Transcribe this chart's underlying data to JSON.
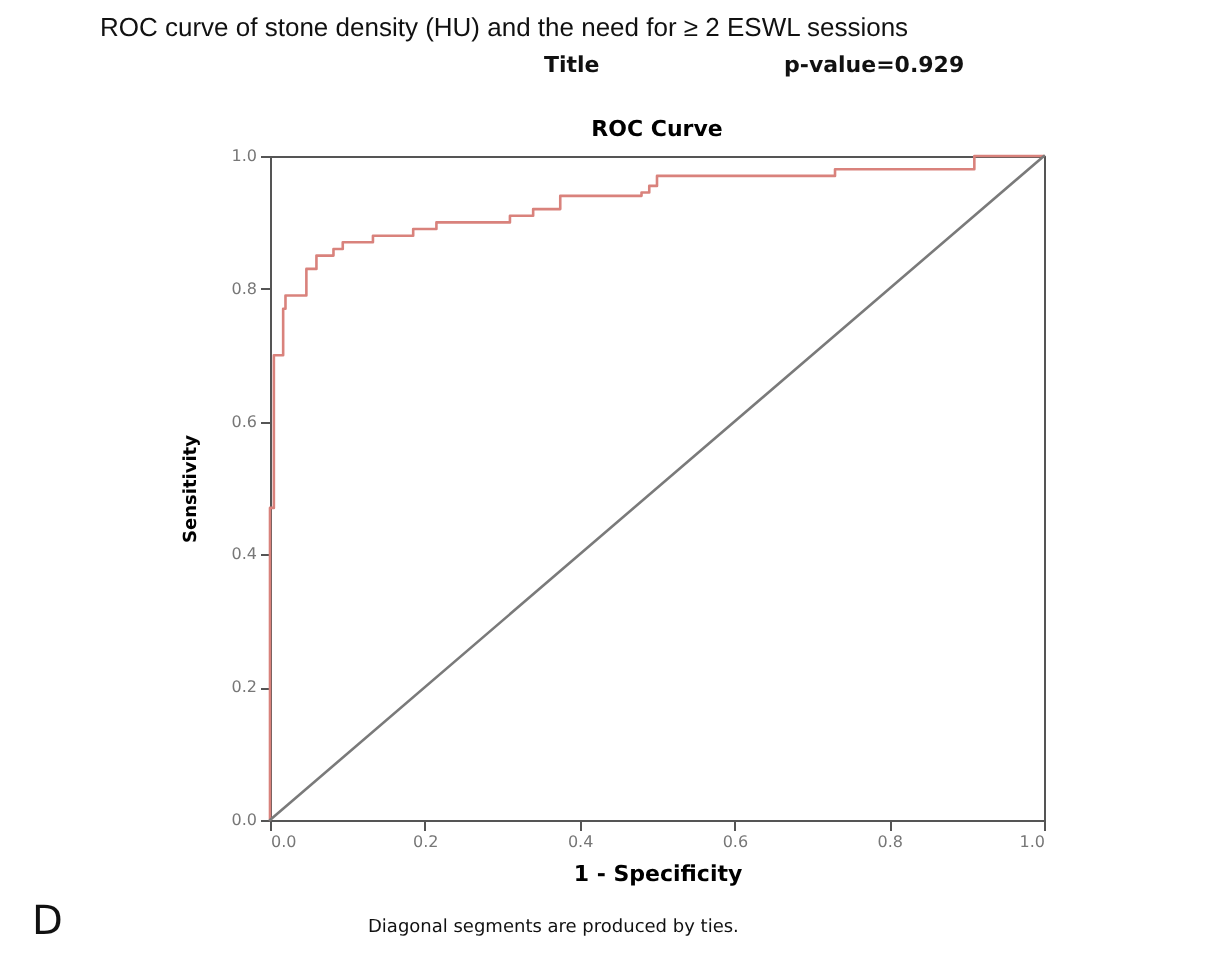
{
  "chart_data": {
    "type": "step",
    "title": "ROC curve of stone density (HU) and the need for ≥ 2 ESWL sessions",
    "subtitle": "ROC Curve",
    "xlabel": "1 - Specificity",
    "ylabel": "Sensitivity",
    "annotations": [
      "Title",
      "p-value=0.929",
      "Diagonal segments are produced by ties.",
      "D"
    ],
    "series": [
      {
        "color": "#d9827c",
        "x": [
          0,
          0,
          0.005,
          0.017,
          0.02,
          0.047,
          0.06,
          0.082,
          0.094,
          0.133,
          0.185,
          0.215,
          0.31,
          0.34,
          0.375,
          0.48,
          0.49,
          0.5,
          0.73,
          0.91,
          1.0
        ],
        "values": [
          0,
          0.47,
          0.7,
          0.77,
          0.79,
          0.83,
          0.85,
          0.86,
          0.87,
          0.88,
          0.89,
          0.9,
          0.91,
          0.92,
          0.94,
          0.945,
          0.955,
          0.97,
          0.98,
          1.0,
          1.0
        ]
      },
      {
        "type": "line",
        "color": "#7a7a7a",
        "x": [
          0,
          1
        ],
        "values": [
          0,
          1
        ]
      }
    ],
    "xlim": [
      0,
      1
    ],
    "ylim": [
      0,
      1
    ],
    "xticks": [
      {
        "value": 0,
        "label": "0.0"
      },
      0.2,
      0.4,
      0.6,
      0.8,
      {
        "value": 1,
        "label": "1.0"
      }
    ],
    "yticks": [
      {
        "value": 0,
        "label": "0.0"
      },
      0.2,
      0.4,
      0.6,
      0.8,
      {
        "value": 1,
        "label": "1.0"
      }
    ],
    "grid": false,
    "marker": "none"
  }
}
